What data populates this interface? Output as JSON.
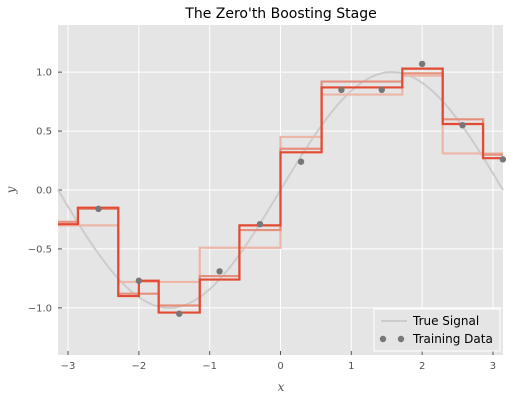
{
  "chart_data": {
    "type": "line",
    "title": "The Zero'th Boosting Stage",
    "xlabel": "x",
    "ylabel": "y",
    "xlim": [
      -3.14159,
      3.14159
    ],
    "ylim": [
      -1.4,
      1.4
    ],
    "xticks": [
      -3,
      -2,
      -1,
      0,
      1,
      2,
      3
    ],
    "yticks": [
      -1.0,
      -0.5,
      0.0,
      0.5,
      1.0
    ],
    "xtick_labels": [
      "−3",
      "−2",
      "−1",
      "0",
      "1",
      "2",
      "3"
    ],
    "ytick_labels": [
      "−1.0",
      "−0.5",
      "0.0",
      "0.5",
      "1.0"
    ],
    "grid": true,
    "legend": {
      "placement": "lower-right",
      "entries": [
        "True Signal",
        "Training Data"
      ]
    },
    "true_signal": {
      "name": "True Signal",
      "function": "sin(x)",
      "color": "#cccccc"
    },
    "training_data": {
      "name": "Training Data",
      "color": "#777777",
      "x": [
        -2.57,
        -2.0,
        -1.43,
        -0.86,
        -0.29,
        0.29,
        0.86,
        1.43,
        2.0,
        2.57,
        3.14
      ],
      "y": [
        -0.16,
        -0.77,
        -1.05,
        -0.69,
        -0.29,
        0.24,
        0.85,
        0.85,
        1.07,
        0.55,
        0.26
      ]
    },
    "step_series": [
      {
        "color": "#ecb6a8",
        "x": [
          -3.14159,
          -2.29,
          -2.29,
          -1.14,
          -1.14,
          0.0,
          0.0,
          0.58,
          0.58,
          1.72,
          1.72,
          2.29,
          2.29,
          3.14159
        ],
        "y": [
          -0.3,
          -0.3,
          -0.78,
          -0.78,
          -0.49,
          -0.49,
          0.45,
          0.45,
          0.81,
          0.81,
          0.97,
          0.97,
          0.31,
          0.31
        ]
      },
      {
        "color": "#e5907c",
        "x": [
          -3.14159,
          -2.86,
          -2.86,
          -2.29,
          -2.29,
          -1.72,
          -1.72,
          -1.14,
          -1.14,
          -0.58,
          -0.58,
          0.0,
          0.0,
          0.58,
          0.58,
          1.72,
          1.72,
          2.29,
          2.29,
          2.86,
          2.86,
          3.14159
        ],
        "y": [
          -0.27,
          -0.27,
          -0.16,
          -0.16,
          -0.88,
          -0.88,
          -0.98,
          -0.98,
          -0.73,
          -0.73,
          -0.34,
          -0.34,
          0.35,
          0.35,
          0.92,
          0.92,
          0.99,
          0.99,
          0.6,
          0.6,
          0.3,
          0.3
        ]
      },
      {
        "color": "#e24a33",
        "x": [
          -3.14159,
          -2.86,
          -2.86,
          -2.29,
          -2.29,
          -2.0,
          -2.0,
          -1.72,
          -1.72,
          -1.14,
          -1.14,
          -0.58,
          -0.58,
          0.0,
          0.0,
          0.58,
          0.58,
          1.72,
          1.72,
          2.29,
          2.29,
          2.86,
          2.86,
          3.14159
        ],
        "y": [
          -0.29,
          -0.29,
          -0.15,
          -0.15,
          -0.9,
          -0.9,
          -0.77,
          -0.77,
          -1.04,
          -1.04,
          -0.76,
          -0.76,
          -0.3,
          -0.3,
          0.32,
          0.32,
          0.87,
          0.87,
          1.03,
          1.03,
          0.56,
          0.56,
          0.27,
          0.27
        ]
      }
    ]
  }
}
